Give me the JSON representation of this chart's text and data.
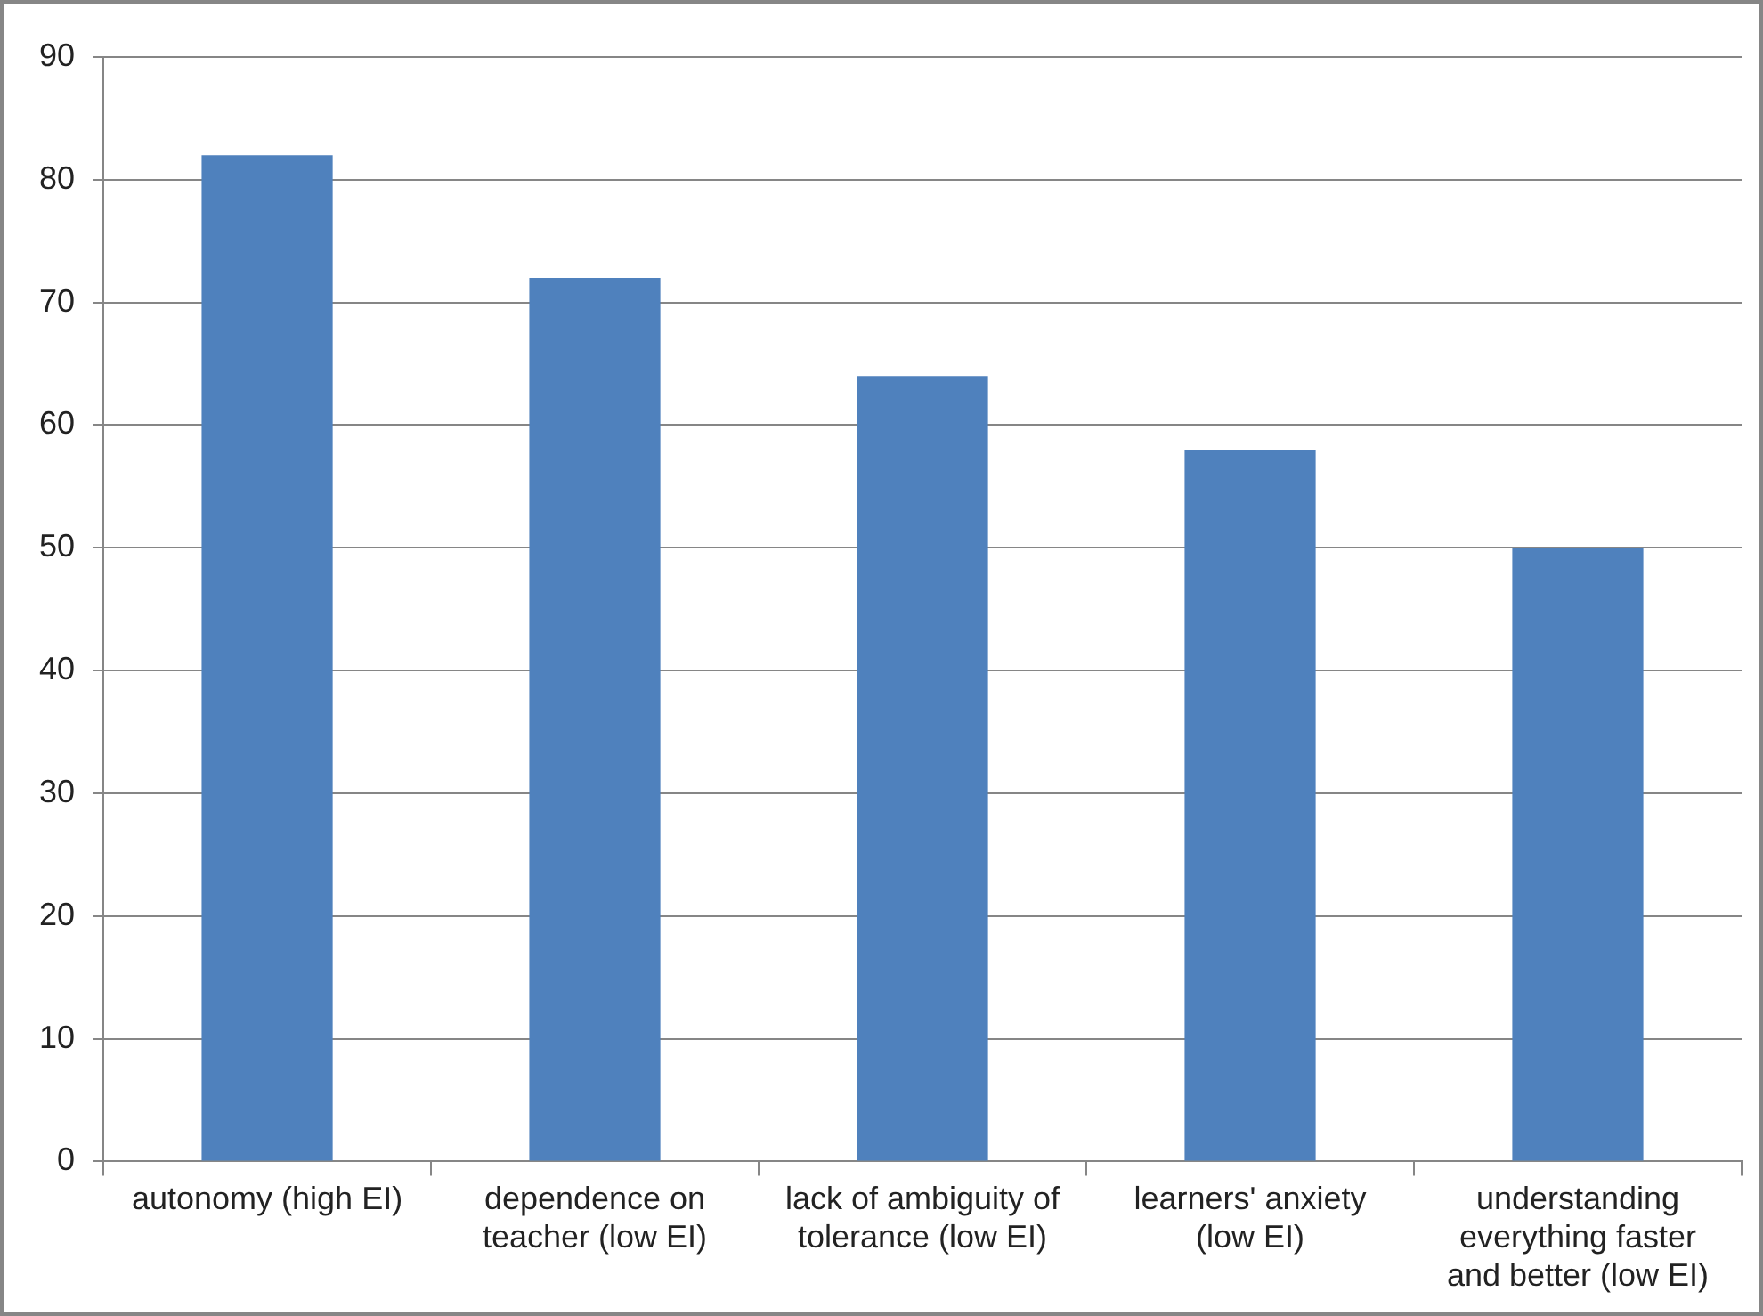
{
  "chart_data": {
    "type": "bar",
    "categories": [
      "autonomy (high EI)",
      "dependence on teacher (low EI)",
      "lack of ambiguity of tolerance (low EI)",
      "learners' anxiety (low EI)",
      "understanding everything faster and better (low EI)"
    ],
    "values": [
      82,
      72,
      64,
      58,
      50
    ],
    "color": "#4f81bd",
    "ylim": [
      0,
      90
    ],
    "yticks": [
      0,
      10,
      20,
      30,
      40,
      50,
      60,
      70,
      80,
      90
    ],
    "grid": "y",
    "legend": false
  }
}
